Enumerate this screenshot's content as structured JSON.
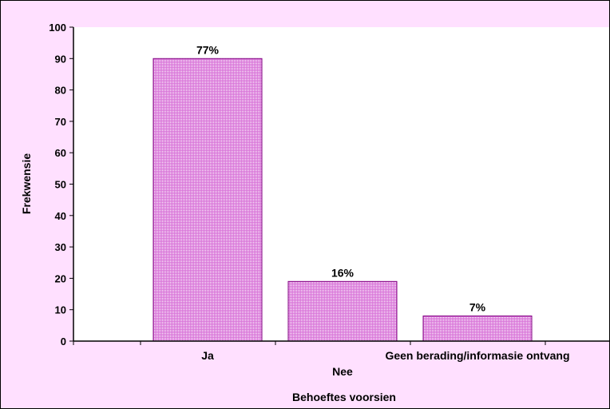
{
  "chart_data": {
    "type": "bar",
    "title": "",
    "xlabel": "Behoeftes voorsien",
    "ylabel": "Frekwensie",
    "categories": [
      "Ja",
      "Nee",
      "Geen berading/informasie ontvang"
    ],
    "values": [
      90,
      19,
      8
    ],
    "data_labels": [
      "77%",
      "16%",
      "7%"
    ],
    "ylim": [
      0,
      100
    ],
    "yticks": [
      0,
      10,
      20,
      30,
      40,
      50,
      60,
      70,
      80,
      90,
      100
    ],
    "grid": false,
    "legend": "none"
  },
  "colors": {
    "background": "#ffe0ff",
    "plot_area": "#ffffff",
    "bar_fill": "#d873d8",
    "bar_pattern": "#ffffff",
    "bar_stroke": "#800080"
  }
}
